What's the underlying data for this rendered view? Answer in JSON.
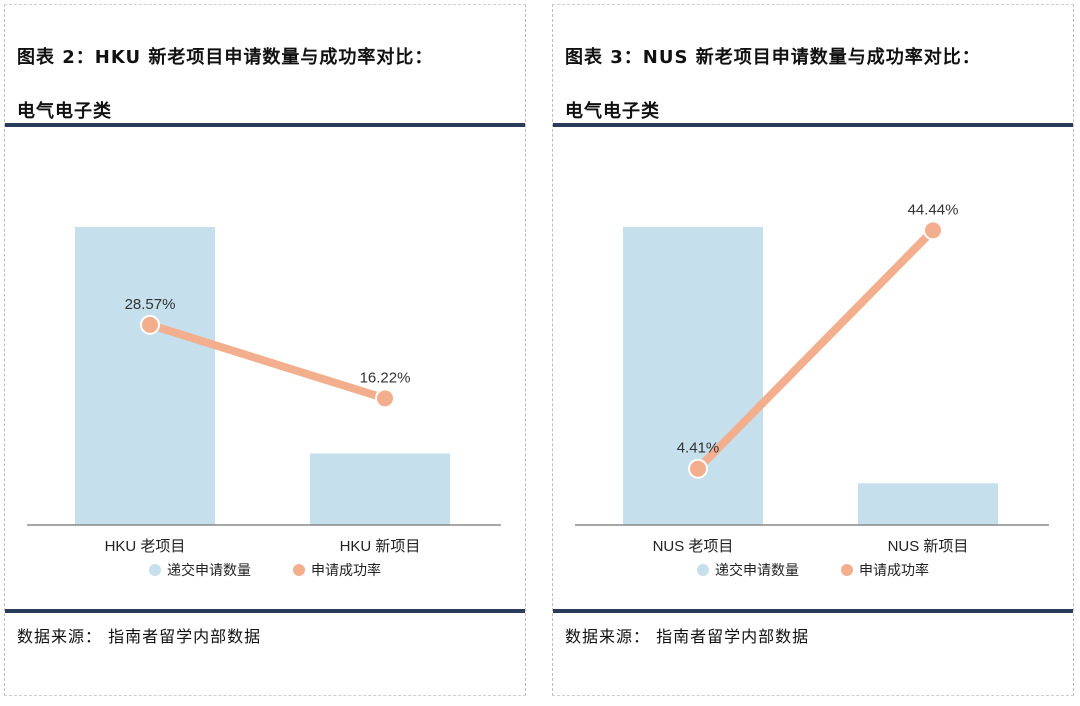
{
  "panels": [
    {
      "title_line1": "图表 2：HKU 新老项目申请数量与成功率对比：",
      "title_line2": "电气电子类",
      "source": "数据来源： 指南者留学内部数据"
    },
    {
      "title_line1": "图表 3：NUS 新老项目申请数量与成功率对比：",
      "title_line2": "电气电子类",
      "source": "数据来源： 指南者留学内部数据"
    }
  ],
  "chart_data": [
    {
      "type": "bar+line",
      "categories": [
        "HKU 老项目",
        "HKU 新项目"
      ],
      "series": [
        {
          "name": "递交申请数量",
          "type": "bar",
          "values": [
            100,
            24
          ]
        },
        {
          "name": "申请成功率",
          "type": "line",
          "values": [
            28.57,
            16.22
          ],
          "labels": [
            "28.57%",
            "16.22%"
          ]
        }
      ],
      "legend_position": "bottom",
      "colors": {
        "bar": "#c5dfed",
        "line": "#f3ae8d",
        "axis": "#888888"
      }
    },
    {
      "type": "bar+line",
      "categories": [
        "NUS 老项目",
        "NUS 新项目"
      ],
      "series": [
        {
          "name": "递交申请数量",
          "type": "bar",
          "values": [
            100,
            14
          ]
        },
        {
          "name": "申请成功率",
          "type": "line",
          "values": [
            4.41,
            44.44
          ],
          "labels": [
            "4.41%",
            "44.44%"
          ]
        }
      ],
      "legend_position": "bottom",
      "colors": {
        "bar": "#c5dfed",
        "line": "#f3ae8d",
        "axis": "#888888"
      }
    }
  ]
}
